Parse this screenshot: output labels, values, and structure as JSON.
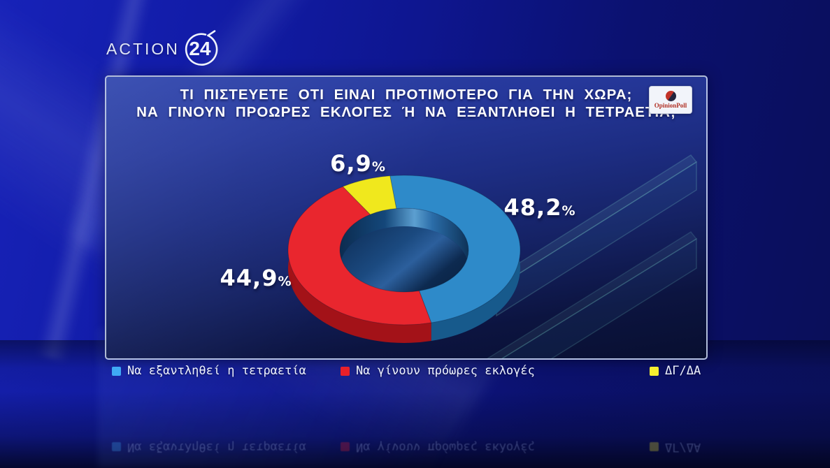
{
  "brand": {
    "channel_name": "ACTION",
    "channel_number": "24"
  },
  "header": {
    "question_line1": "ΤΙ ΠΙΣΤΕΥΕΤΕ ΟΤΙ ΕΙΝΑΙ ΠΡΟΤΙΜΟΤΕΡΟ ΓΙΑ ΤΗΝ ΧΩΡΑ;",
    "question_line2": "ΝΑ ΓΙΝΟΥΝ ΠΡΟΩΡΕΣ ΕΚΛΟΓΕΣ Ή ΝΑ ΕΞΑΝΤΛΗΘΕΙ Η ΤΕΤΡΑΕΤΙΑ;",
    "pollster": "OpinionPoll"
  },
  "chart_data": {
    "type": "pie",
    "subtype": "3d-donut",
    "title": "ΤΙ ΠΙΣΤΕΥΕΤΕ ΟΤΙ ΕΙΝΑΙ ΠΡΟΤΙΜΟΤΕΡΟ ΓΙΑ ΤΗΝ ΧΩΡΑ; ΝΑ ΓΙΝΟΥΝ ΠΡΟΩΡΕΣ ΕΚΛΟΓΕΣ Ή ΝΑ ΕΞΑΝΤΛΗΘΕΙ Η ΤΕΤΡΑΕΤΙΑ;",
    "direction": "clockwise",
    "start_angle_deg": -7,
    "legend_position": "bottom",
    "percent_symbol": "%",
    "slices": [
      {
        "label": "Να εξαντληθεί η τετραετία",
        "value": 48.2,
        "display_value": "48,2",
        "color": "#2e8ac9",
        "side_color": "#175a8c",
        "legend_color": "#3fa9f5"
      },
      {
        "label": "Να γίνουν πρόωρες εκλογές",
        "value": 44.9,
        "display_value": "44,9",
        "color": "#e9262e",
        "side_color": "#a31218",
        "legend_color": "#e8202a"
      },
      {
        "label": "ΔΓ/ΔΑ",
        "value": 6.9,
        "display_value": "6,9",
        "color": "#f0e81d",
        "side_color": "#97a00f",
        "legend_color": "#f6ee2f"
      }
    ]
  }
}
